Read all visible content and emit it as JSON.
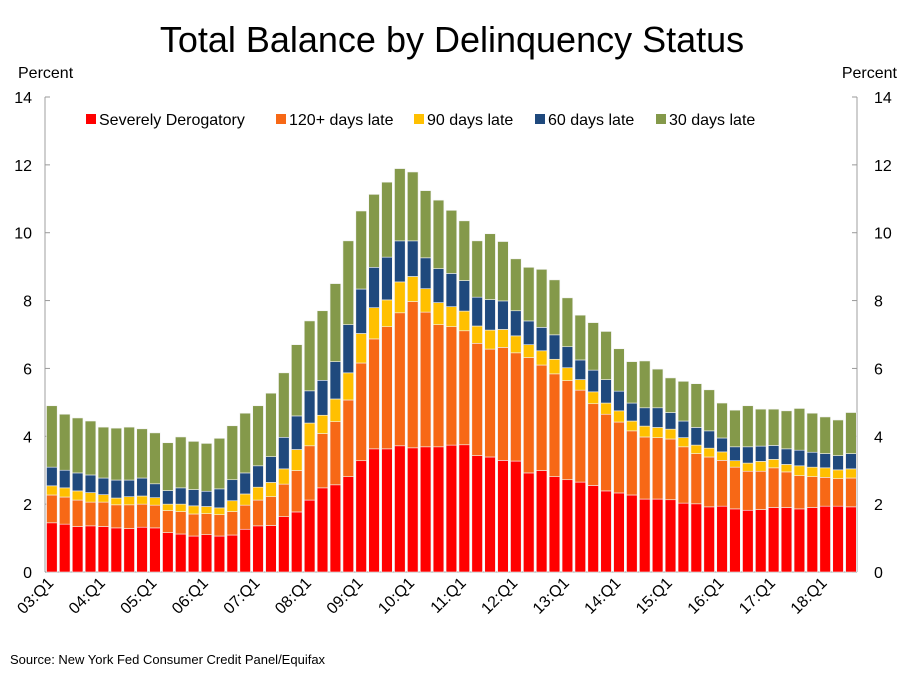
{
  "chart_data": {
    "type": "bar",
    "stacked": true,
    "title": "Total Balance by Delinquency Status",
    "ylabel_left": "Percent",
    "ylabel_right": "Percent",
    "ylim": [
      0,
      14
    ],
    "yticks": [
      0,
      2,
      4,
      6,
      8,
      10,
      12,
      14
    ],
    "grid": false,
    "legend_position": "top-left",
    "source": "Source: New York Fed Consumer Credit Panel/Equifax",
    "xtick_labels": [
      "03:Q1",
      "04:Q1",
      "05:Q1",
      "06:Q1",
      "07:Q1",
      "08:Q1",
      "09:Q1",
      "10:Q1",
      "11:Q1",
      "12:Q1",
      "13:Q1",
      "14:Q1",
      "15:Q1",
      "16:Q1",
      "17:Q1",
      "18:Q1"
    ],
    "categories": [
      "03:Q1",
      "03:Q2",
      "03:Q3",
      "03:Q4",
      "04:Q1",
      "04:Q2",
      "04:Q3",
      "04:Q4",
      "05:Q1",
      "05:Q2",
      "05:Q3",
      "05:Q4",
      "06:Q1",
      "06:Q2",
      "06:Q3",
      "06:Q4",
      "07:Q1",
      "07:Q2",
      "07:Q3",
      "07:Q4",
      "08:Q1",
      "08:Q2",
      "08:Q3",
      "08:Q4",
      "09:Q1",
      "09:Q2",
      "09:Q3",
      "09:Q4",
      "10:Q1",
      "10:Q2",
      "10:Q3",
      "10:Q4",
      "11:Q1",
      "11:Q2",
      "11:Q3",
      "11:Q4",
      "12:Q1",
      "12:Q2",
      "12:Q3",
      "12:Q4",
      "13:Q1",
      "13:Q2",
      "13:Q3",
      "13:Q4",
      "14:Q1",
      "14:Q2",
      "14:Q3",
      "14:Q4",
      "15:Q1",
      "15:Q2",
      "15:Q3",
      "15:Q4",
      "16:Q1",
      "16:Q2",
      "16:Q3",
      "16:Q4",
      "17:Q1",
      "17:Q2",
      "17:Q3",
      "17:Q4",
      "18:Q1",
      "18:Q2",
      "18:Q3"
    ],
    "series": [
      {
        "name": "Severely Derogatory",
        "color": "#FF0000",
        "values": [
          1.45,
          1.41,
          1.34,
          1.36,
          1.34,
          1.3,
          1.28,
          1.32,
          1.3,
          1.16,
          1.12,
          1.06,
          1.1,
          1.06,
          1.09,
          1.26,
          1.36,
          1.37,
          1.63,
          1.77,
          2.12,
          2.48,
          2.57,
          2.81,
          3.28,
          3.63,
          3.63,
          3.72,
          3.66,
          3.69,
          3.69,
          3.74,
          3.75,
          3.43,
          3.39,
          3.29,
          3.27,
          2.92,
          2.99,
          2.81,
          2.72,
          2.65,
          2.55,
          2.39,
          2.33,
          2.27,
          2.15,
          2.15,
          2.13,
          2.03,
          2.01,
          1.92,
          1.94,
          1.86,
          1.82,
          1.84,
          1.9,
          1.9,
          1.86,
          1.9,
          1.94,
          1.94,
          1.92
        ]
      },
      {
        "name": "120+ days late",
        "color": "#F76816",
        "values": [
          0.82,
          0.8,
          0.78,
          0.7,
          0.72,
          0.68,
          0.7,
          0.68,
          0.67,
          0.65,
          0.66,
          0.65,
          0.62,
          0.63,
          0.69,
          0.71,
          0.76,
          0.85,
          0.96,
          1.22,
          1.6,
          1.6,
          1.86,
          2.26,
          2.88,
          3.24,
          3.6,
          3.92,
          4.31,
          3.97,
          3.6,
          3.49,
          3.36,
          3.31,
          3.18,
          3.33,
          3.19,
          3.4,
          3.11,
          3.03,
          2.92,
          2.71,
          2.41,
          2.26,
          2.09,
          1.89,
          1.83,
          1.81,
          1.79,
          1.66,
          1.48,
          1.47,
          1.35,
          1.23,
          1.15,
          1.13,
          1.17,
          1.05,
          0.98,
          0.91,
          0.85,
          0.81,
          0.85
        ]
      },
      {
        "name": "90 days late",
        "color": "#FFC000",
        "values": [
          0.27,
          0.27,
          0.27,
          0.28,
          0.22,
          0.2,
          0.24,
          0.24,
          0.22,
          0.19,
          0.22,
          0.24,
          0.21,
          0.2,
          0.32,
          0.33,
          0.38,
          0.42,
          0.45,
          0.62,
          0.67,
          0.54,
          0.67,
          0.8,
          0.87,
          0.92,
          0.79,
          0.91,
          0.74,
          0.69,
          0.65,
          0.59,
          0.58,
          0.51,
          0.56,
          0.53,
          0.5,
          0.38,
          0.42,
          0.43,
          0.38,
          0.31,
          0.35,
          0.33,
          0.33,
          0.29,
          0.32,
          0.3,
          0.29,
          0.27,
          0.25,
          0.26,
          0.25,
          0.19,
          0.24,
          0.29,
          0.25,
          0.22,
          0.29,
          0.28,
          0.28,
          0.26,
          0.27
        ]
      },
      {
        "name": "60 days late",
        "color": "#1F497D",
        "values": [
          0.55,
          0.52,
          0.53,
          0.52,
          0.49,
          0.53,
          0.49,
          0.53,
          0.41,
          0.4,
          0.48,
          0.48,
          0.45,
          0.56,
          0.62,
          0.62,
          0.63,
          0.76,
          0.93,
          0.99,
          0.95,
          1.03,
          1.1,
          1.42,
          1.31,
          1.19,
          1.26,
          1.21,
          1.05,
          0.91,
          1.0,
          0.98,
          0.9,
          0.85,
          0.9,
          0.84,
          0.74,
          0.7,
          0.69,
          0.72,
          0.62,
          0.58,
          0.64,
          0.69,
          0.58,
          0.53,
          0.54,
          0.58,
          0.49,
          0.49,
          0.52,
          0.51,
          0.41,
          0.41,
          0.48,
          0.45,
          0.41,
          0.46,
          0.46,
          0.44,
          0.42,
          0.42,
          0.45
        ]
      },
      {
        "name": "30 days late",
        "color": "#84994A",
        "values": [
          1.81,
          1.65,
          1.62,
          1.59,
          1.5,
          1.53,
          1.56,
          1.45,
          1.5,
          1.41,
          1.5,
          1.42,
          1.41,
          1.49,
          1.59,
          1.76,
          1.77,
          1.87,
          1.9,
          2.1,
          2.06,
          2.05,
          2.3,
          2.47,
          2.3,
          2.15,
          2.21,
          2.13,
          2.03,
          1.98,
          2.02,
          1.86,
          1.76,
          1.66,
          1.94,
          1.75,
          1.53,
          1.58,
          1.71,
          1.62,
          1.44,
          1.32,
          1.4,
          1.42,
          1.25,
          1.22,
          1.38,
          1.14,
          1.02,
          1.17,
          1.29,
          1.21,
          1.03,
          1.08,
          1.21,
          1.09,
          1.07,
          1.12,
          1.23,
          1.15,
          1.08,
          1.05,
          1.21
        ]
      }
    ]
  }
}
